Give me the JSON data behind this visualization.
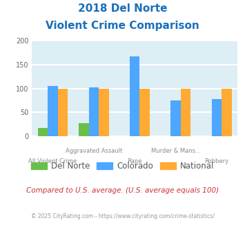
{
  "title_line1": "2018 Del Norte",
  "title_line2": "Violent Crime Comparison",
  "row1_labels": [
    "",
    "Aggravated Assault",
    "",
    "Murder & Mans...",
    ""
  ],
  "row2_labels": [
    "All Violent Crime",
    "",
    "Rape",
    "",
    "Robbery"
  ],
  "del_norte": [
    18,
    28,
    0,
    0,
    0
  ],
  "colorado": [
    105,
    103,
    167,
    75,
    78
  ],
  "national": [
    100,
    100,
    100,
    100,
    100
  ],
  "del_norte_color": "#6abf4b",
  "colorado_color": "#4da6ff",
  "national_color": "#ffaa33",
  "ylim": [
    0,
    200
  ],
  "yticks": [
    0,
    50,
    100,
    150,
    200
  ],
  "bg_color": "#ddeef5",
  "grid_color": "#ffffff",
  "title_color": "#1a6fba",
  "footer_text": "Compared to U.S. average. (U.S. average equals 100)",
  "footer_color": "#cc3333",
  "copyright_text": "© 2025 CityRating.com - https://www.cityrating.com/crime-statistics/",
  "copyright_color": "#999999",
  "legend_labels": [
    "Del Norte",
    "Colorado",
    "National"
  ],
  "legend_text_color": "#555555",
  "xtick_color": "#888888",
  "ytick_color": "#666666"
}
